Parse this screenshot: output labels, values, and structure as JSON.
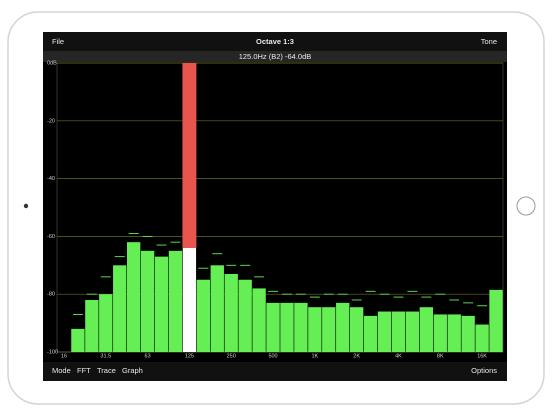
{
  "toolbar": {
    "left": "File",
    "title": "Octave 1:3",
    "right": "Tone"
  },
  "readout": "125.0Hz (B2) -64.0dB",
  "bottom_bar": {
    "items": [
      "Mode",
      "FFT",
      "Trace",
      "Graph"
    ],
    "right": "Options"
  },
  "chart_data": {
    "type": "bar",
    "categories": [
      "16",
      null,
      null,
      "31.5",
      null,
      null,
      "63",
      null,
      null,
      "125",
      null,
      null,
      "250",
      null,
      null,
      "500",
      null,
      null,
      "1K",
      null,
      null,
      "2K",
      null,
      null,
      "4K",
      null,
      null,
      "8K",
      null,
      null,
      "16K",
      null
    ],
    "values": [
      -100,
      -92,
      -82,
      -80,
      -70,
      -62,
      -65,
      -67,
      -65,
      -64,
      -75,
      -70,
      -73,
      -75,
      -78,
      -83,
      -83,
      -83,
      -84.5,
      -84.5,
      -83,
      -84.5,
      -87.5,
      -86,
      -86,
      -86,
      -84.5,
      -87,
      -87,
      -87.5,
      -90.5,
      -78.5
    ],
    "peaks": [
      null,
      -87,
      -80,
      -74,
      -67,
      -59,
      -60,
      -63,
      -62,
      -64,
      -71,
      -66,
      -70,
      -70,
      -74,
      -79,
      -80,
      -80,
      -81,
      -80,
      -80,
      -82,
      -79,
      -80,
      -81,
      -79,
      -81,
      -80,
      -82,
      -83,
      -84,
      -80
    ],
    "color": "#66ee55",
    "selected_index": 9,
    "selected_color": "#ffffff",
    "highlight_color": "#e8554e",
    "ylim": [
      -100,
      0
    ],
    "yticks": [
      {
        "value": 0,
        "label": "0dB"
      },
      -20,
      -40,
      -60,
      -80,
      -100
    ],
    "grid": true,
    "grid_color": "#6b6b22"
  }
}
